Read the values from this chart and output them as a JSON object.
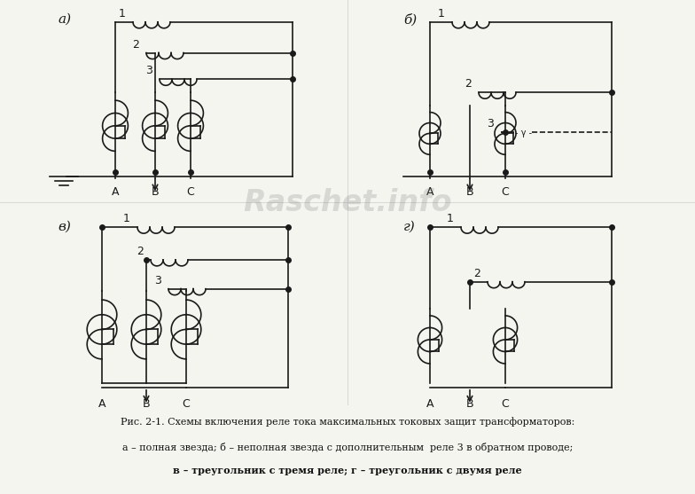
{
  "caption_line1": "Рис. 2-1. Схемы включения реле тока максимальных токовых защит трансформаторов:",
  "caption_line2": "а – полная звезда; б – неполная звезда с дополнительным  реле 3 в обратном проводе;",
  "caption_line3": "в – треугольник с тремя реле; г – треугольник с двумя реле",
  "watermark": "Raschet.info",
  "bg_color": "#f5f5f0",
  "line_color": "#1a1a1a",
  "label_a": "а)",
  "label_b": "б)",
  "label_c": "в)",
  "label_d": "г)"
}
